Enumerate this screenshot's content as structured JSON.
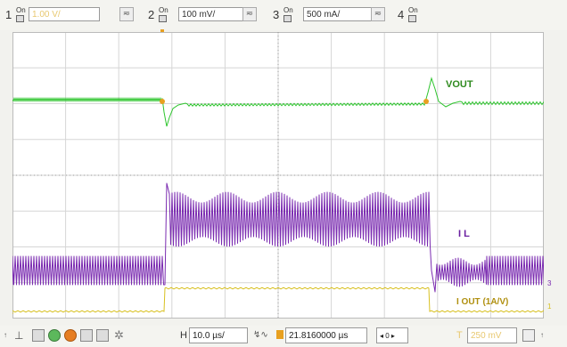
{
  "toolbar": {
    "channels": [
      {
        "num": "1",
        "on": "On",
        "value": "1.00 V/",
        "dim": true
      },
      {
        "num": "2",
        "on": "On",
        "value": "100 mV/",
        "dim": false
      },
      {
        "num": "3",
        "on": "On",
        "value": "500 mA/",
        "dim": false
      },
      {
        "num": "4",
        "on": "On"
      }
    ],
    "coupling_glyph": "≂"
  },
  "traces": {
    "vout_label": "VOUT",
    "il_label": "I L",
    "iout_label": "I OUT (1A/V)",
    "colors": {
      "vout": "#2ec52e",
      "il": "#7a2bb0",
      "iout": "#d8c020",
      "trigger": "#e8a020"
    }
  },
  "markers": {
    "ch3": "3",
    "ch1": "1"
  },
  "bottom": {
    "timebase_label": "H",
    "timebase_value": "10.0 µs/",
    "delay_value": "21.8160000 µs",
    "trigger_label": "T",
    "trigger_value": "250 mV"
  }
}
